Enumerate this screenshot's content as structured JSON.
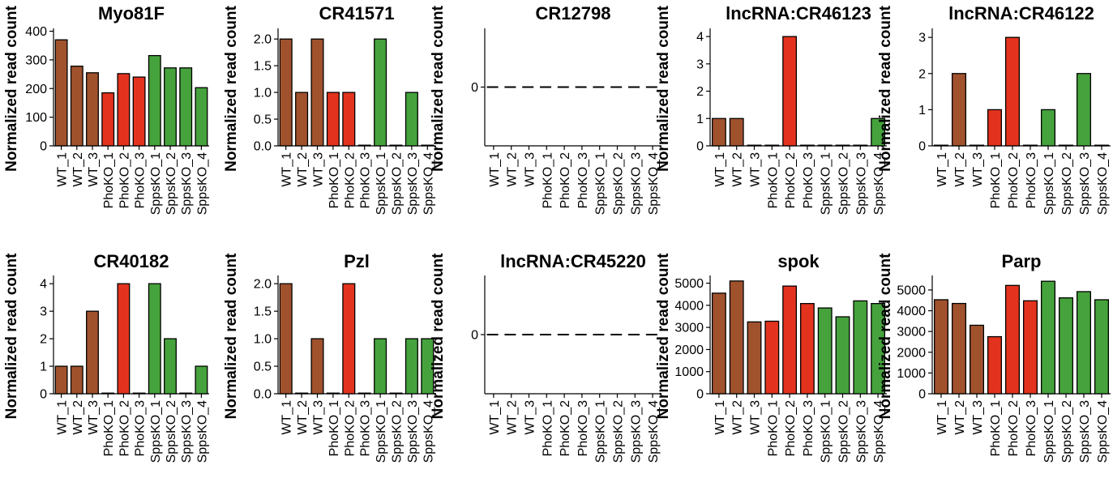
{
  "figure": {
    "groups": [
      "WT",
      "PhoKO",
      "SppsKO"
    ],
    "colors": {
      "WT": "#a0522d",
      "PhoKO": "#e3331e",
      "SppsKO": "#45a23c"
    },
    "ylabel": "Normalized read count"
  },
  "chart_data": [
    {
      "type": "bar",
      "title": "Myo81F",
      "ylabel": "Normalized read count",
      "categories": [
        "WT_1",
        "WT_2",
        "WT_3",
        "PhoKO_1",
        "PhoKO_2",
        "PhoKO_3",
        "SppsKO_1",
        "SppsKO_2",
        "SppsKO_3",
        "SppsKO_4"
      ],
      "groups": [
        "WT",
        "WT",
        "WT",
        "PhoKO",
        "PhoKO",
        "PhoKO",
        "SppsKO",
        "SppsKO",
        "SppsKO",
        "SppsKO"
      ],
      "values": [
        370,
        278,
        255,
        185,
        252,
        240,
        315,
        272,
        272,
        203
      ],
      "ylim": [
        0,
        410
      ],
      "yticks": [
        0,
        100,
        200,
        300,
        400
      ],
      "ytick_labels": [
        "0",
        "100",
        "200",
        "300",
        "400"
      ]
    },
    {
      "type": "bar",
      "title": "CR41571",
      "ylabel": "Normalized read count",
      "categories": [
        "WT_1",
        "WT_2",
        "WT_3",
        "PhoKO_1",
        "PhoKO_2",
        "PhoKO_3",
        "SppsKO_1",
        "SppsKO_2",
        "SppsKO_3",
        "SppsKO_4"
      ],
      "groups": [
        "WT",
        "WT",
        "WT",
        "PhoKO",
        "PhoKO",
        "PhoKO",
        "SppsKO",
        "SppsKO",
        "SppsKO",
        "SppsKO"
      ],
      "values": [
        2,
        1,
        2,
        1,
        1,
        0,
        2,
        0,
        1,
        0
      ],
      "ylim": [
        0,
        2.2
      ],
      "yticks": [
        0,
        0.5,
        1,
        1.5,
        2
      ],
      "ytick_labels": [
        "0.0",
        "0.5",
        "1.0",
        "1.5",
        "2.0"
      ]
    },
    {
      "type": "bar",
      "title": "CR12798",
      "ylabel": "Normalized read count",
      "categories": [
        "WT_1",
        "WT_2",
        "WT_3",
        "PhoKO_1",
        "PhoKO_2",
        "PhoKO_3",
        "SppsKO_1",
        "SppsKO_2",
        "SppsKO_3",
        "SppsKO_4"
      ],
      "groups": [
        "WT",
        "WT",
        "WT",
        "PhoKO",
        "PhoKO",
        "PhoKO",
        "SppsKO",
        "SppsKO",
        "SppsKO",
        "SppsKO"
      ],
      "values": [
        0,
        0,
        0,
        0,
        0,
        0,
        0,
        0,
        0,
        0
      ],
      "ylim": [
        -1,
        1
      ],
      "yticks": [
        0
      ],
      "ytick_labels": [
        "0"
      ],
      "all_zero": true
    },
    {
      "type": "bar",
      "title": "lncRNA:CR46123",
      "ylabel": "Normalized read count",
      "categories": [
        "WT_1",
        "WT_2",
        "WT_3",
        "PhoKO_1",
        "PhoKO_2",
        "PhoKO_3",
        "SppsKO_1",
        "SppsKO_2",
        "SppsKO_3",
        "SppsKO_4"
      ],
      "groups": [
        "WT",
        "WT",
        "WT",
        "PhoKO",
        "PhoKO",
        "PhoKO",
        "SppsKO",
        "SppsKO",
        "SppsKO",
        "SppsKO"
      ],
      "values": [
        1,
        1,
        0,
        0,
        4,
        0,
        0,
        0,
        0,
        1
      ],
      "ylim": [
        0,
        4.3
      ],
      "yticks": [
        0,
        1,
        2,
        3,
        4
      ],
      "ytick_labels": [
        "0",
        "1",
        "2",
        "3",
        "4"
      ]
    },
    {
      "type": "bar",
      "title": "lncRNA:CR46122",
      "ylabel": "Normalized read count",
      "categories": [
        "WT_1",
        "WT_2",
        "WT_3",
        "PhoKO_1",
        "PhoKO_2",
        "PhoKO_3",
        "SppsKO_1",
        "SppsKO_2",
        "SppsKO_3",
        "SppsKO_4"
      ],
      "groups": [
        "WT",
        "WT",
        "WT",
        "PhoKO",
        "PhoKO",
        "PhoKO",
        "SppsKO",
        "SppsKO",
        "SppsKO",
        "SppsKO"
      ],
      "values": [
        0,
        2,
        0,
        1,
        3,
        0,
        1,
        0,
        2,
        0
      ],
      "ylim": [
        0,
        3.25
      ],
      "yticks": [
        0,
        1,
        2,
        3
      ],
      "ytick_labels": [
        "0",
        "1",
        "2",
        "3"
      ]
    },
    {
      "type": "bar",
      "title": "CR40182",
      "ylabel": "Normalized read count",
      "categories": [
        "WT_1",
        "WT_2",
        "WT_3",
        "PhoKO_1",
        "PhoKO_2",
        "PhoKO_3",
        "SppsKO_1",
        "SppsKO_2",
        "SppsKO_3",
        "SppsKO_4"
      ],
      "groups": [
        "WT",
        "WT",
        "WT",
        "PhoKO",
        "PhoKO",
        "PhoKO",
        "SppsKO",
        "SppsKO",
        "SppsKO",
        "SppsKO"
      ],
      "values": [
        1,
        1,
        3,
        0,
        4,
        0,
        4,
        2,
        0,
        1
      ],
      "ylim": [
        0,
        4.3
      ],
      "yticks": [
        0,
        1,
        2,
        3,
        4
      ],
      "ytick_labels": [
        "0",
        "1",
        "2",
        "3",
        "4"
      ]
    },
    {
      "type": "bar",
      "title": "Pzl",
      "ylabel": "Normalized read count",
      "categories": [
        "WT_1",
        "WT_2",
        "WT_3",
        "PhoKO_1",
        "PhoKO_2",
        "PhoKO_3",
        "SppsKO_1",
        "SppsKO_2",
        "SppsKO_3",
        "SppsKO_4"
      ],
      "groups": [
        "WT",
        "WT",
        "WT",
        "PhoKO",
        "PhoKO",
        "PhoKO",
        "SppsKO",
        "SppsKO",
        "SppsKO",
        "SppsKO"
      ],
      "values": [
        2,
        0,
        1,
        0,
        2,
        0,
        1,
        0,
        1,
        1
      ],
      "ylim": [
        0,
        2.15
      ],
      "yticks": [
        0,
        0.5,
        1,
        1.5,
        2
      ],
      "ytick_labels": [
        "0.0",
        "0.5",
        "1.0",
        "1.5",
        "2.0"
      ]
    },
    {
      "type": "bar",
      "title": "lncRNA:CR45220",
      "ylabel": "Normalized read count",
      "categories": [
        "WT_1",
        "WT_2",
        "WT_3",
        "PhoKO_1",
        "PhoKO_2",
        "PhoKO_3",
        "SppsKO_1",
        "SppsKO_2",
        "SppsKO_3",
        "SppsKO_4"
      ],
      "groups": [
        "WT",
        "WT",
        "WT",
        "PhoKO",
        "PhoKO",
        "PhoKO",
        "SppsKO",
        "SppsKO",
        "SppsKO",
        "SppsKO"
      ],
      "values": [
        0,
        0,
        0,
        0,
        0,
        0,
        0,
        0,
        0,
        0
      ],
      "ylim": [
        -1,
        1
      ],
      "yticks": [
        0
      ],
      "ytick_labels": [
        "0"
      ],
      "all_zero": true
    },
    {
      "type": "bar",
      "title": "spok",
      "ylabel": "Normalized read count",
      "categories": [
        "WT_1",
        "WT_2",
        "WT_3",
        "PhoKO_1",
        "PhoKO_2",
        "PhoKO_3",
        "SppsKO_1",
        "SppsKO_2",
        "SppsKO_3",
        "SppsKO_4"
      ],
      "groups": [
        "WT",
        "WT",
        "WT",
        "PhoKO",
        "PhoKO",
        "PhoKO",
        "SppsKO",
        "SppsKO",
        "SppsKO",
        "SppsKO"
      ],
      "values": [
        4550,
        5100,
        3250,
        3280,
        4870,
        4080,
        3880,
        3480,
        4200,
        4080
      ],
      "ylim": [
        0,
        5350
      ],
      "yticks": [
        0,
        1000,
        2000,
        3000,
        4000,
        5000
      ],
      "ytick_labels": [
        "0",
        "1000",
        "2000",
        "3000",
        "4000",
        "5000"
      ]
    },
    {
      "type": "bar",
      "title": "Parp",
      "ylabel": "Normalized read count",
      "categories": [
        "WT_1",
        "WT_2",
        "WT_3",
        "PhoKO_1",
        "PhoKO_2",
        "PhoKO_3",
        "SppsKO_1",
        "SppsKO_2",
        "SppsKO_3",
        "SppsKO_4"
      ],
      "groups": [
        "WT",
        "WT",
        "WT",
        "PhoKO",
        "PhoKO",
        "PhoKO",
        "SppsKO",
        "SppsKO",
        "SppsKO",
        "SppsKO"
      ],
      "values": [
        4530,
        4350,
        3300,
        2750,
        5220,
        4480,
        5420,
        4620,
        4920,
        4530
      ],
      "ylim": [
        0,
        5700
      ],
      "yticks": [
        0,
        1000,
        2000,
        3000,
        4000,
        5000
      ],
      "ytick_labels": [
        "0",
        "1000",
        "2000",
        "3000",
        "4000",
        "5000"
      ]
    }
  ]
}
